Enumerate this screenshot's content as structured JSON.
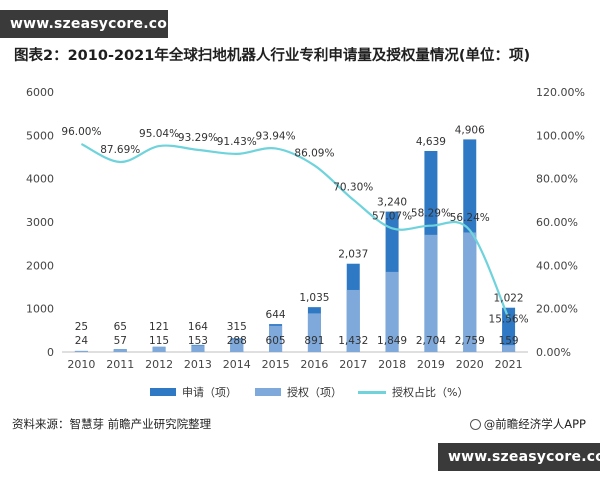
{
  "watermark_top": "www.szeasycore.com",
  "watermark_bottom": "www.szeasycore.com",
  "title": "图表2：2010-2021年全球扫地机器人行业专利申请量及授权量情况(单位：项)",
  "source": "资料来源：智慧芽 前瞻产业研究院整理",
  "brand": "@前瞻经济学人APP",
  "colors": {
    "apply": "#2f78c4",
    "grant": "#7fa9da",
    "ratio": "#6fd3dc"
  },
  "chart_data": {
    "type": "bar",
    "categories": [
      "2010",
      "2011",
      "2012",
      "2013",
      "2014",
      "2015",
      "2016",
      "2017",
      "2018",
      "2019",
      "2020",
      "2021"
    ],
    "series": [
      {
        "name": "申请（项）",
        "type": "bar",
        "axis": "left",
        "values": [
          25,
          65,
          121,
          164,
          315,
          644,
          1035,
          2037,
          3240,
          4639,
          4906,
          1022
        ],
        "labels": [
          "25",
          "65",
          "121",
          "164",
          "315",
          "644",
          "1,035",
          "2,037",
          "3,240",
          "4,639",
          "4,906",
          "1,022"
        ]
      },
      {
        "name": "授权（项）",
        "type": "bar",
        "axis": "left",
        "values": [
          24,
          57,
          115,
          153,
          288,
          605,
          891,
          1432,
          1849,
          2704,
          2759,
          159
        ],
        "labels": [
          "24",
          "57",
          "115",
          "153",
          "288",
          "605",
          "891",
          "1,432",
          "1,849",
          "2,704",
          "2,759",
          "159"
        ]
      },
      {
        "name": "授权占比（%）",
        "type": "line",
        "axis": "right",
        "values": [
          96.0,
          87.69,
          95.04,
          93.29,
          91.43,
          93.94,
          86.09,
          70.3,
          57.07,
          58.29,
          56.24,
          15.56
        ],
        "labels": [
          "96.00%",
          "87.69%",
          "95.04%",
          "93.29%",
          "91.43%",
          "93.94%",
          "86.09%",
          "70.30%",
          "57.07%",
          "58.29%",
          "56.24%",
          "15.56%"
        ]
      }
    ],
    "y_left": {
      "min": 0,
      "max": 6000,
      "ticks": [
        "0",
        "1000",
        "2000",
        "3000",
        "4000",
        "5000",
        "6000"
      ]
    },
    "y_right": {
      "min": 0,
      "max": 120,
      "ticks": [
        "0.00%",
        "20.00%",
        "40.00%",
        "60.00%",
        "80.00%",
        "100.00%",
        "120.00%"
      ]
    },
    "legend_position": "bottom",
    "grid": false
  }
}
